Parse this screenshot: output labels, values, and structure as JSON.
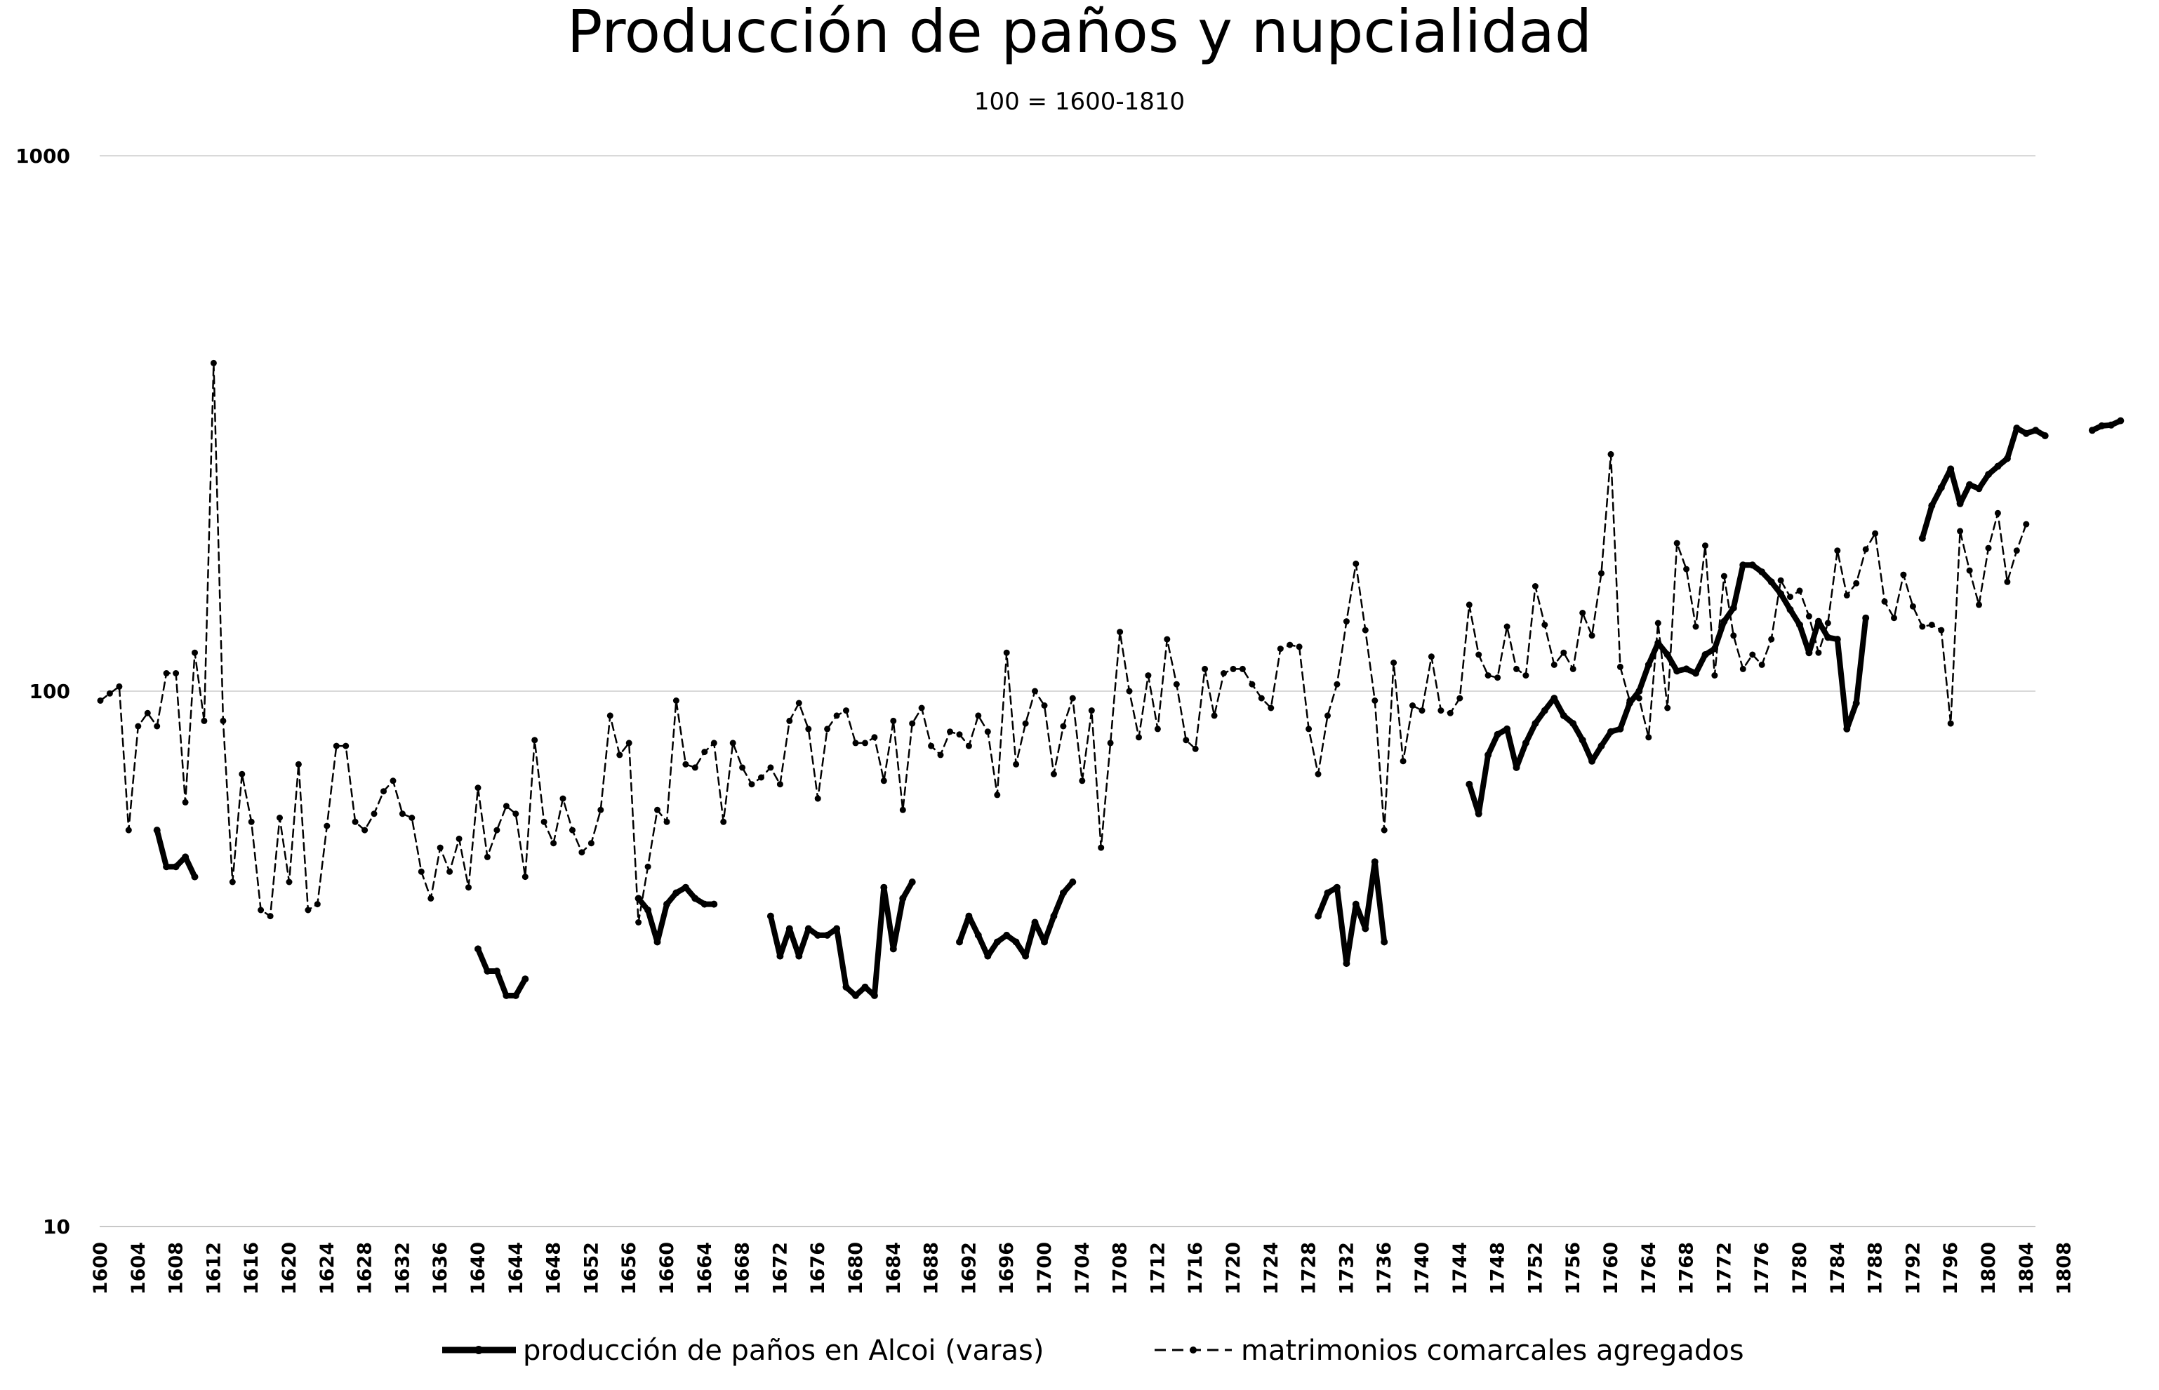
{
  "chart_data": {
    "type": "line",
    "title": "Producción de paños y nupcialidad",
    "subtitle": "100 = 1600-1810",
    "xlabel": "",
    "ylabel": "",
    "yscale": "log",
    "ylim": [
      10,
      1000
    ],
    "y_ticks": [
      "1000",
      "100",
      "10"
    ],
    "y_tick_values": [
      1000,
      100,
      10
    ],
    "x_ticks": [
      "1600",
      "1604",
      "1608",
      "1612",
      "1616",
      "1620",
      "1624",
      "1628",
      "1632",
      "1636",
      "1640",
      "1644",
      "1648",
      "1652",
      "1656",
      "1660",
      "1664",
      "1668",
      "1672",
      "1676",
      "1680",
      "1684",
      "1688",
      "1692",
      "1696",
      "1700",
      "1704",
      "1708",
      "1712",
      "1716",
      "1720",
      "1724",
      "1728",
      "1732",
      "1736",
      "1740",
      "1744",
      "1748",
      "1752",
      "1756",
      "1760",
      "1764",
      "1768",
      "1772",
      "1776",
      "1780",
      "1784",
      "1788",
      "1792",
      "1796",
      "1800",
      "1804",
      "1808"
    ],
    "x_tick_values": [
      1600,
      1604,
      1608,
      1612,
      1616,
      1620,
      1624,
      1628,
      1632,
      1636,
      1640,
      1644,
      1648,
      1652,
      1656,
      1660,
      1664,
      1668,
      1672,
      1676,
      1680,
      1684,
      1688,
      1692,
      1696,
      1700,
      1704,
      1708,
      1712,
      1716,
      1720,
      1724,
      1728,
      1732,
      1736,
      1740,
      1744,
      1748,
      1752,
      1756,
      1760,
      1764,
      1768,
      1772,
      1776,
      1780,
      1784,
      1788,
      1792,
      1796,
      1800,
      1804,
      1808
    ],
    "xlim": [
      1600,
      1810
    ],
    "grid": true,
    "legend_position": "bottom",
    "series": [
      {
        "name": "producción de paños en Alcoi (varas)",
        "style": "solid-thick",
        "color": "#000000",
        "x_start": 1606,
        "values": [
          55,
          47,
          47,
          49,
          45,
          null,
          null,
          null,
          null,
          null,
          null,
          null,
          null,
          null,
          null,
          null,
          null,
          null,
          null,
          null,
          null,
          null,
          null,
          null,
          null,
          null,
          null,
          null,
          null,
          null,
          null,
          null,
          null,
          null,
          33,
          30,
          30,
          27,
          27,
          29,
          null,
          null,
          null,
          null,
          null,
          null,
          null,
          null,
          null,
          null,
          null,
          41,
          39,
          34,
          40,
          42,
          43,
          41,
          40,
          40,
          null,
          null,
          null,
          null,
          null,
          38,
          32,
          36,
          32,
          36,
          35,
          35,
          36,
          28,
          27,
          28,
          27,
          43,
          33,
          41,
          44,
          null,
          null,
          null,
          null,
          34,
          38,
          35,
          32,
          34,
          35,
          34,
          32,
          37,
          34,
          38,
          42,
          44,
          null,
          null,
          null,
          null,
          null,
          null,
          null,
          null,
          null,
          null,
          null,
          null,
          null,
          null,
          null,
          null,
          null,
          null,
          null,
          null,
          null,
          null,
          null,
          null,
          null,
          38,
          42,
          43,
          31,
          40,
          36,
          48,
          34,
          null,
          null,
          null,
          null,
          null,
          null,
          null,
          null,
          67,
          59,
          76,
          83,
          85,
          72,
          80,
          87,
          92,
          97,
          90,
          87,
          81,
          74,
          79,
          84,
          85,
          95,
          100,
          112,
          123,
          117,
          109,
          110,
          108,
          117,
          120,
          135,
          143,
          172,
          172,
          167,
          160,
          152,
          142,
          133,
          118,
          135,
          126,
          125,
          85,
          95,
          137,
          null,
          null,
          null,
          null,
          null,
          193,
          222,
          240,
          260,
          224,
          243,
          239,
          254,
          263,
          272,
          310,
          303,
          307,
          300,
          null,
          null,
          null,
          null,
          307,
          313,
          314,
          320
        ]
      },
      {
        "name": "matrimonios comarcales agregados",
        "style": "dashed",
        "color": "#000000",
        "x_start": 1600,
        "values": [
          96,
          99,
          102,
          55,
          86,
          91,
          86,
          108,
          108,
          62,
          118,
          88,
          410,
          88,
          44,
          70,
          57,
          39,
          38,
          58,
          44,
          73,
          39,
          40,
          56,
          79,
          79,
          57,
          55,
          59,
          65,
          68,
          59,
          58,
          46,
          41,
          51,
          46,
          53,
          43,
          66,
          49,
          55,
          61,
          59,
          45,
          81,
          57,
          52,
          63,
          55,
          50,
          52,
          60,
          90,
          76,
          80,
          37,
          47,
          60,
          57,
          96,
          73,
          72,
          77,
          80,
          57,
          80,
          72,
          67,
          69,
          72,
          67,
          88,
          95,
          85,
          63,
          85,
          90,
          92,
          80,
          80,
          82,
          68,
          88,
          60,
          87,
          93,
          79,
          76,
          84,
          83,
          79,
          90,
          84,
          64,
          118,
          73,
          87,
          100,
          94,
          70,
          86,
          97,
          68,
          92,
          51,
          80,
          129,
          100,
          82,
          107,
          85,
          125,
          103,
          81,
          78,
          110,
          90,
          108,
          110,
          110,
          103,
          97,
          93,
          120,
          122,
          121,
          85,
          70,
          90,
          103,
          135,
          173,
          130,
          96,
          55,
          113,
          74,
          94,
          92,
          116,
          92,
          91,
          97,
          145,
          117,
          107,
          106,
          132,
          110,
          107,
          157,
          133,
          112,
          118,
          110,
          140,
          127,
          166,
          277,
          111,
          96,
          97,
          82,
          134,
          93,
          189,
          169,
          132,
          187,
          107,
          164,
          127,
          110,
          117,
          112,
          125,
          161,
          150,
          154,
          138,
          118,
          134,
          183,
          151,
          159,
          184,
          197,
          147,
          137,
          165,
          144,
          132,
          133,
          130,
          87,
          199,
          168,
          145,
          185,
          215,
          160,
          183,
          205
        ]
      }
    ]
  }
}
